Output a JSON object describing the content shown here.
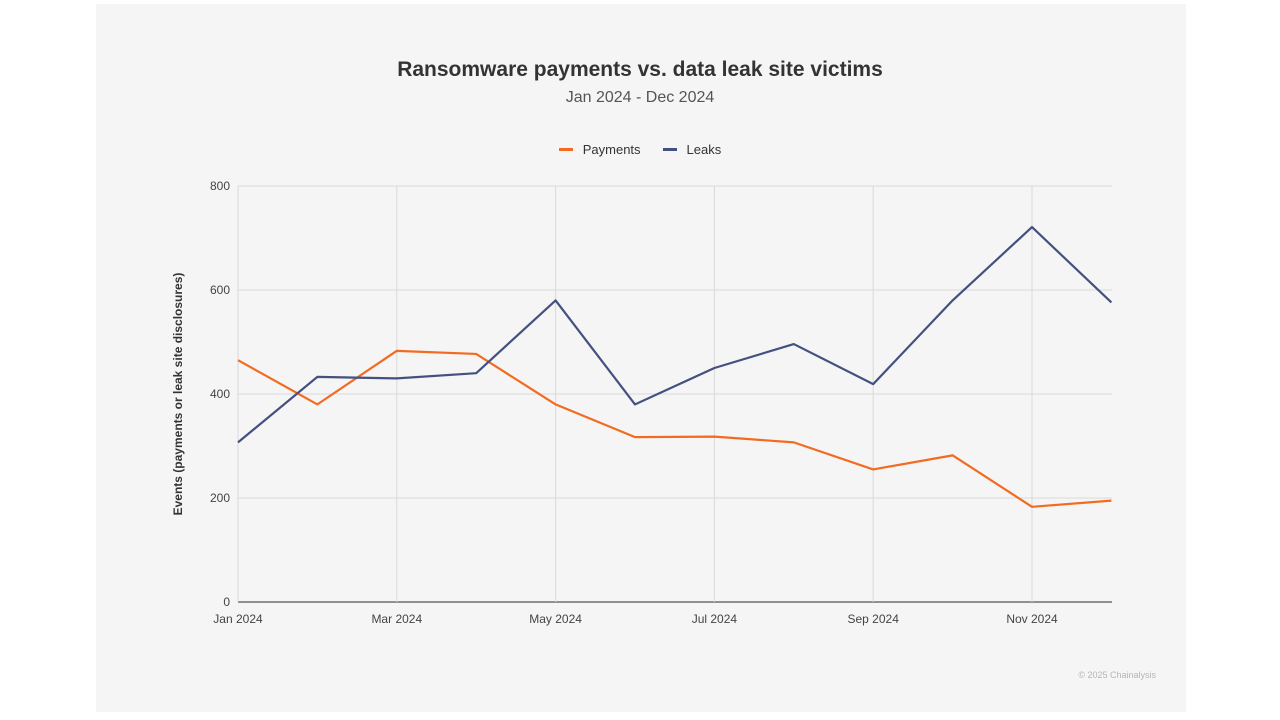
{
  "chart_data": {
    "type": "line",
    "title": "Ransomware payments vs. data leak site victims",
    "subtitle": "Jan 2024 - Dec 2024",
    "xlabel": "",
    "ylabel": "Events (payments or leak site disclosures)",
    "x": [
      "2024-01",
      "2024-02",
      "2024-03",
      "2024-04",
      "2024-05",
      "2024-06",
      "2024-07",
      "2024-08",
      "2024-09",
      "2024-10",
      "2024-11",
      "2024-12"
    ],
    "x_tick_labels": [
      {
        "x": "2024-01",
        "label": "Jan 2024"
      },
      {
        "x": "2024-03",
        "label": "Mar 2024"
      },
      {
        "x": "2024-05",
        "label": "May 2024"
      },
      {
        "x": "2024-07",
        "label": "Jul 2024"
      },
      {
        "x": "2024-09",
        "label": "Sep 2024"
      },
      {
        "x": "2024-11",
        "label": "Nov 2024"
      }
    ],
    "y_ticks": [
      0,
      200,
      400,
      600,
      800
    ],
    "ylim": [
      0,
      800
    ],
    "grid": true,
    "legend_position": "top-center",
    "series": [
      {
        "name": "Payments",
        "color": "#f26b21",
        "values": [
          465,
          380,
          483,
          477,
          380,
          317,
          318,
          307,
          255,
          282,
          183,
          195
        ]
      },
      {
        "name": "Leaks",
        "color": "#44507f",
        "values": [
          307,
          433,
          430,
          440,
          580,
          380,
          450,
          496,
          419,
          580,
          721,
          576
        ]
      }
    ]
  },
  "credit": "© 2025 Chainalysis"
}
